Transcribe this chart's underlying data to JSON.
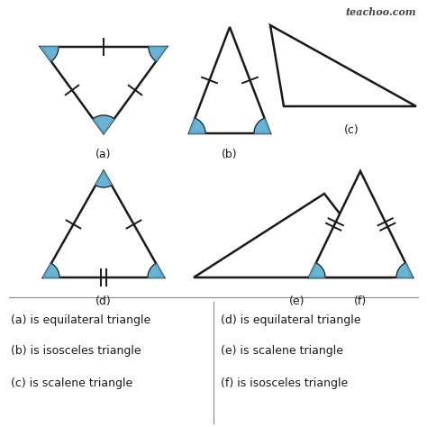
{
  "bg_color": "#ffffff",
  "line_color": "#1a1a1a",
  "fill_color": "#5aabcf",
  "watermark": "teachoo.com",
  "labels": [
    "(a)",
    "(b)",
    "(c)",
    "(d)",
    "(e)",
    "(f)"
  ],
  "descriptions_left": [
    "(a) is equilateral triangle",
    "(b) is isosceles triangle",
    "(c) is scalene triangle"
  ],
  "descriptions_right": [
    "(d) is equilateral triangle",
    "(e) is scalene triangle",
    "(f) is isosceles triangle"
  ],
  "font_size_label": 9,
  "font_size_desc": 9,
  "font_size_watermark": 8
}
